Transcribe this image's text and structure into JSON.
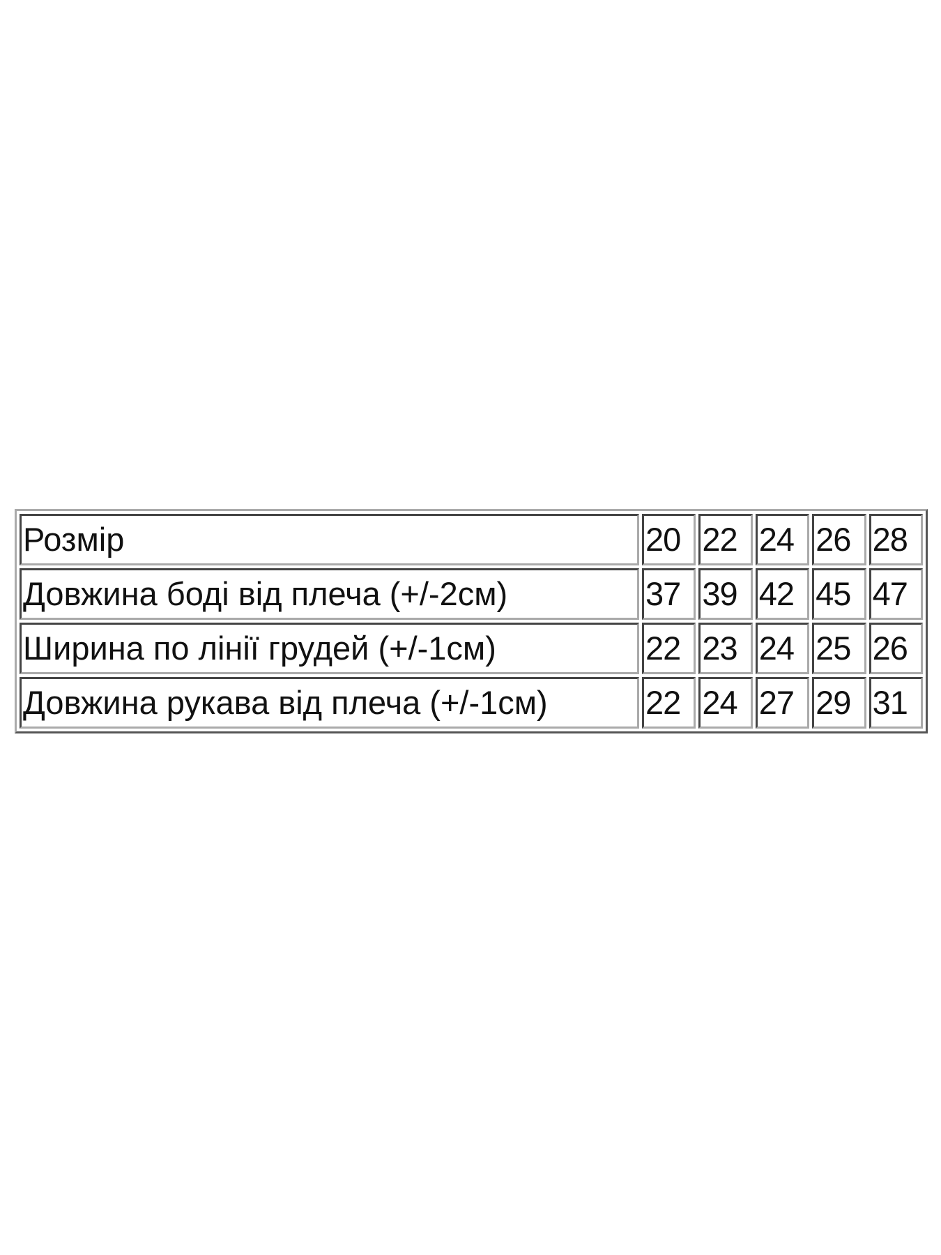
{
  "table": {
    "rows": [
      {
        "label": "Розмір",
        "values": [
          "20",
          "22",
          "24",
          "26",
          "28"
        ]
      },
      {
        "label": "Довжина боді від плеча (+/-2см)",
        "values": [
          "37",
          "39",
          "42",
          "45",
          "47"
        ]
      },
      {
        "label": "Ширина по лінії грудей (+/-1см)",
        "values": [
          "22",
          "23",
          "24",
          "25",
          "26"
        ]
      },
      {
        "label": "Довжина рукава від плеча (+/-1см)",
        "values": [
          "22",
          "24",
          "27",
          "29",
          "31"
        ]
      }
    ]
  }
}
